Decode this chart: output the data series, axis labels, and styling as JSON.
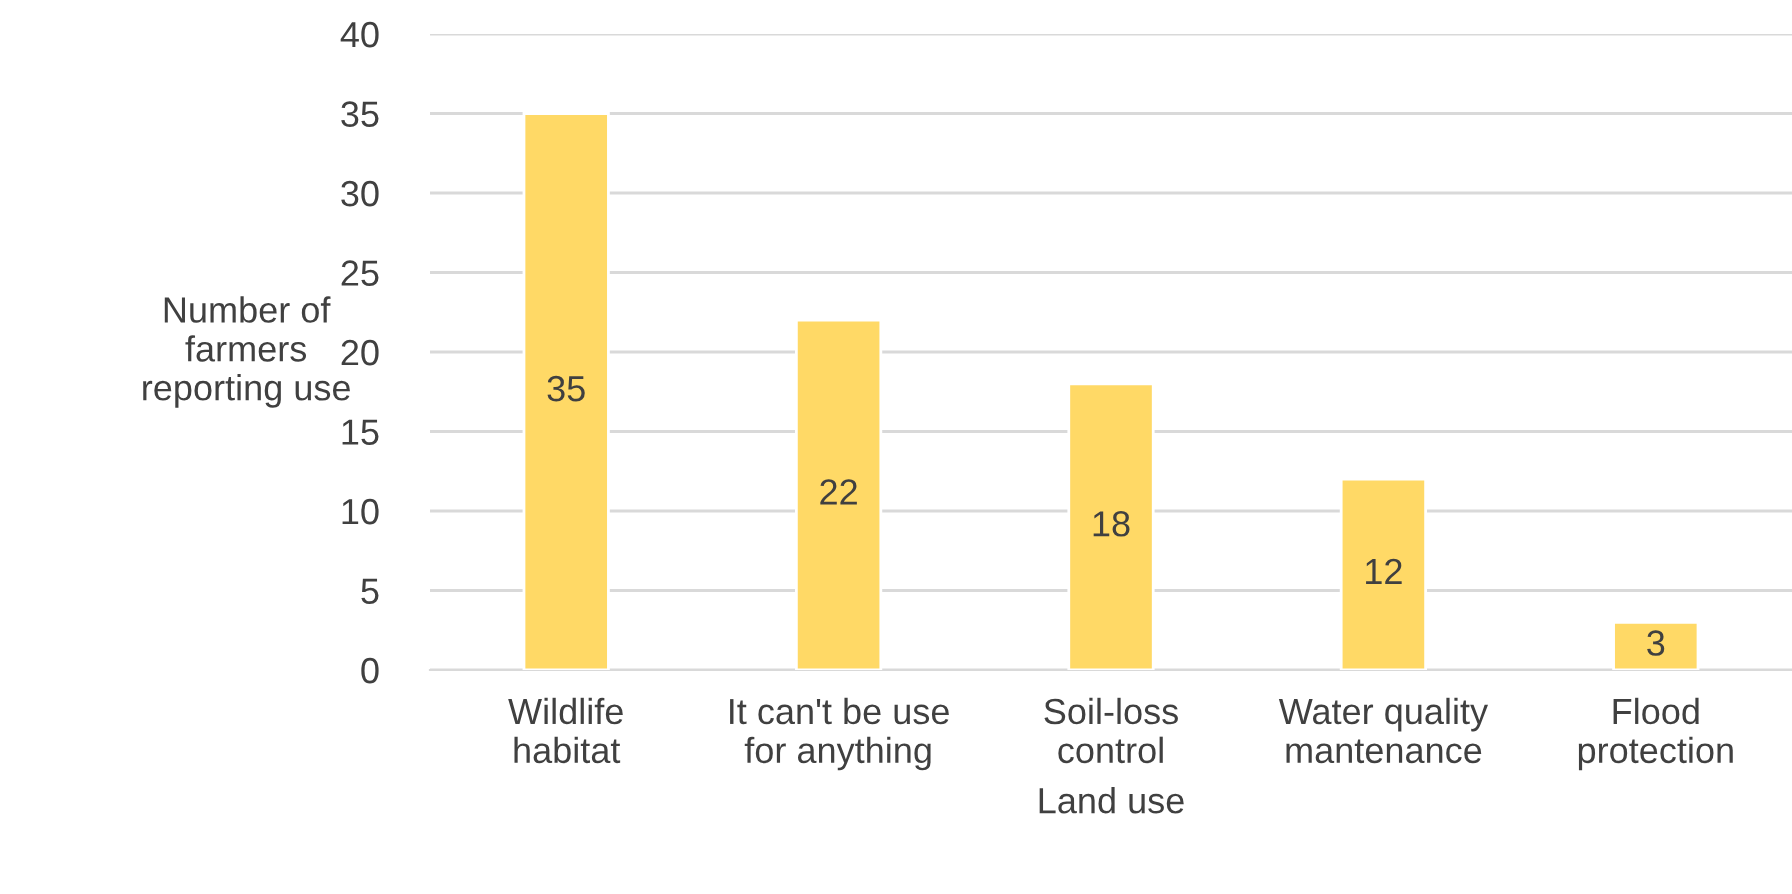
{
  "chart_data": {
    "type": "bar",
    "xlabel": "Land use",
    "ylabel": "Number of\nfarmers\nreporting use",
    "categories": [
      "Wildlife\nhabitat",
      "It can't be use\nfor anything",
      "Soil-loss\ncontrol",
      "Water quality\nmantenance",
      "Flood\nprotection"
    ],
    "values": [
      35,
      22,
      18,
      12,
      3
    ],
    "color": "#ffd966",
    "ylim": [
      0,
      40
    ],
    "yticks": [
      0,
      5,
      10,
      15,
      20,
      25,
      30,
      35,
      40
    ],
    "grid": "y",
    "data_labels": true
  }
}
